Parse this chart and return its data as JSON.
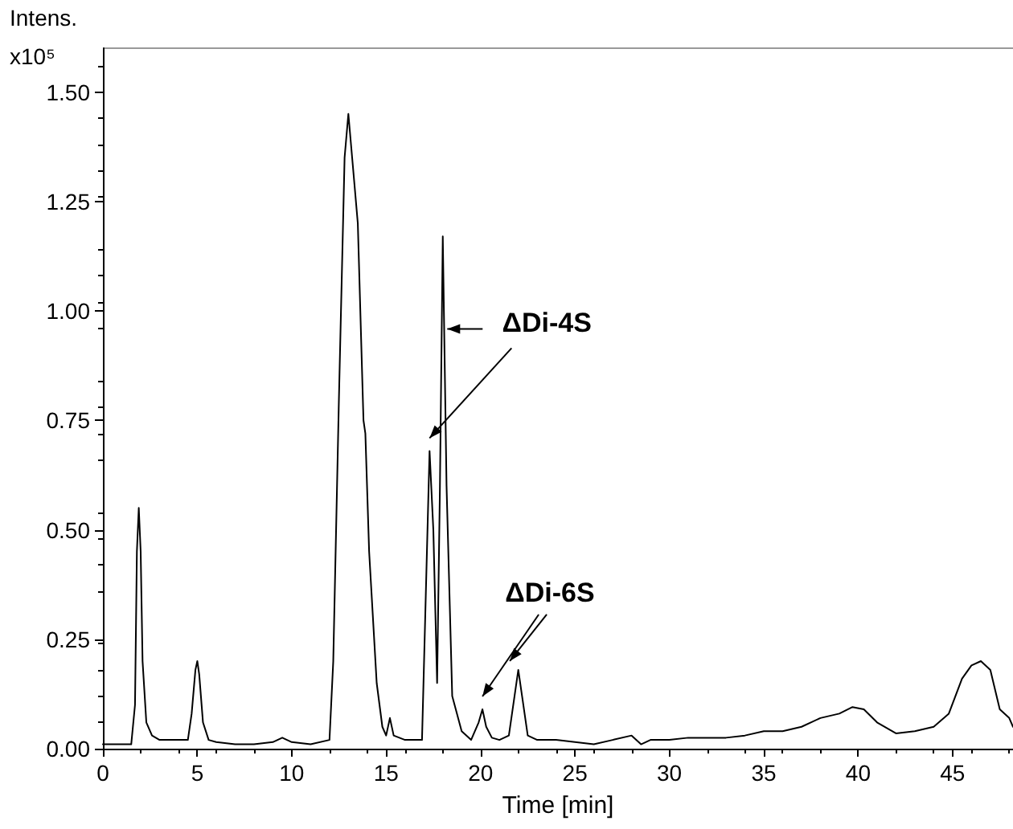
{
  "chart_data": {
    "type": "line",
    "xlabel": "Time [min]",
    "ylabel": "Intens.",
    "annotations": [
      "x10⁵",
      {
        "text": "ΔDi-4S",
        "x": 17.3,
        "y": 0.68
      },
      {
        "text": "ΔDi-6S",
        "x": 20.1,
        "y": 0.09
      }
    ],
    "xlim": [
      0,
      48.2
    ],
    "xticks": [
      0,
      5,
      10,
      15,
      20,
      25,
      30,
      35,
      40,
      45
    ],
    "ylim": [
      0,
      1.6
    ],
    "yticks": [
      {
        "value": 0,
        "label": "0.00"
      },
      {
        "value": 0.25,
        "label": "0.25"
      },
      {
        "value": 0.5,
        "label": "0.50"
      },
      {
        "value": 0.75,
        "label": "0.75"
      },
      {
        "value": 1,
        "label": "1.00"
      },
      {
        "value": 1.25,
        "label": "1.25"
      },
      {
        "value": 1.5,
        "label": "1.50"
      }
    ],
    "grid": false,
    "marker": "none",
    "line_style": "solid",
    "series": [
      {
        "color": "#000000",
        "x": [
          0,
          0.5,
          1,
          1.5,
          1.7,
          1.8,
          1.9,
          2.0,
          2.1,
          2.3,
          2.6,
          3,
          3.5,
          4,
          4.5,
          4.7,
          4.9,
          5.0,
          5.1,
          5.3,
          5.6,
          6,
          7,
          8,
          9,
          9.5,
          10,
          11,
          12,
          12.2,
          12.5,
          12.8,
          13.0,
          13.2,
          13.5,
          13.8,
          13.9,
          14.1,
          14.5,
          14.8,
          15.0,
          15.2,
          15.4,
          16,
          16.5,
          16.9,
          17.1,
          17.3,
          17.5,
          17.7,
          17.85,
          18.0,
          18.2,
          18.5,
          19,
          19.5,
          19.9,
          20.1,
          20.3,
          20.6,
          21,
          21.5,
          21.8,
          22.0,
          22.2,
          22.5,
          23,
          24,
          25,
          26,
          27,
          28,
          28.5,
          29,
          30,
          31,
          32,
          33,
          34,
          35,
          36,
          37,
          38,
          39,
          39.7,
          40.3,
          41,
          42,
          43,
          44,
          44.8,
          45.5,
          46,
          46.5,
          47,
          47.5,
          48,
          48.2
        ],
        "values": [
          0.01,
          0.01,
          0.01,
          0.01,
          0.1,
          0.45,
          0.55,
          0.45,
          0.2,
          0.06,
          0.03,
          0.02,
          0.02,
          0.02,
          0.02,
          0.08,
          0.18,
          0.2,
          0.17,
          0.06,
          0.02,
          0.015,
          0.01,
          0.01,
          0.015,
          0.025,
          0.015,
          0.01,
          0.02,
          0.2,
          0.8,
          1.35,
          1.45,
          1.35,
          1.2,
          0.75,
          0.72,
          0.45,
          0.15,
          0.05,
          0.03,
          0.07,
          0.03,
          0.02,
          0.02,
          0.02,
          0.35,
          0.68,
          0.5,
          0.15,
          0.6,
          1.17,
          0.6,
          0.12,
          0.04,
          0.02,
          0.06,
          0.09,
          0.05,
          0.025,
          0.02,
          0.03,
          0.12,
          0.18,
          0.12,
          0.03,
          0.02,
          0.02,
          0.015,
          0.01,
          0.02,
          0.03,
          0.01,
          0.02,
          0.02,
          0.025,
          0.025,
          0.025,
          0.03,
          0.04,
          0.04,
          0.05,
          0.07,
          0.08,
          0.095,
          0.09,
          0.06,
          0.035,
          0.04,
          0.05,
          0.08,
          0.16,
          0.19,
          0.2,
          0.18,
          0.09,
          0.07,
          0.05
        ]
      }
    ]
  }
}
